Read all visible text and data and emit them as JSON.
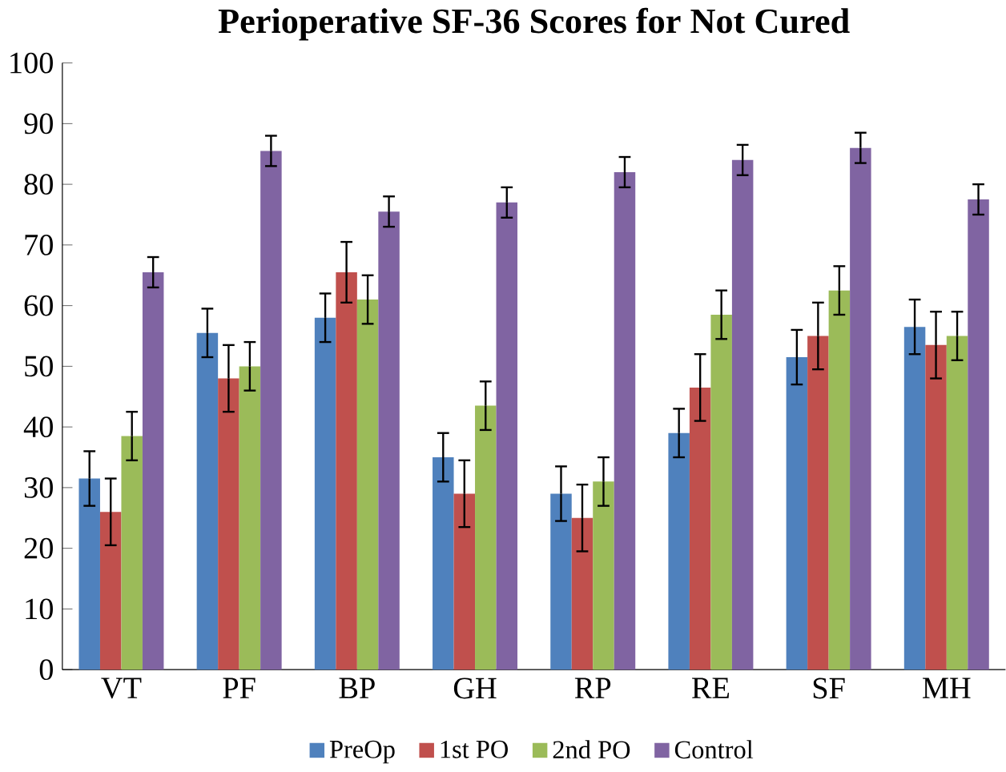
{
  "chart_data": {
    "type": "bar",
    "title": "Perioperative SF-36 Scores for Not Cured",
    "categories": [
      "VT",
      "PF",
      "BP",
      "GH",
      "RP",
      "RE",
      "SF",
      "MH"
    ],
    "series": [
      {
        "name": "PreOp",
        "color": "#4f81bd",
        "values": [
          31.5,
          55.5,
          58,
          35,
          29,
          39,
          51.5,
          56.5
        ],
        "errors": [
          4.5,
          4,
          4,
          4,
          4.5,
          4,
          4.5,
          4.5
        ]
      },
      {
        "name": "1st PO",
        "color": "#c0504d",
        "values": [
          26,
          48,
          65.5,
          29,
          25,
          46.5,
          55,
          53.5
        ],
        "errors": [
          5.5,
          5.5,
          5,
          5.5,
          5.5,
          5.5,
          5.5,
          5.5
        ]
      },
      {
        "name": "2nd PO",
        "color": "#9bbb59",
        "values": [
          38.5,
          50,
          61,
          43.5,
          31,
          58.5,
          62.5,
          55
        ],
        "errors": [
          4,
          4,
          4,
          4,
          4,
          4,
          4,
          4
        ]
      },
      {
        "name": "Control",
        "color": "#8064a2",
        "values": [
          65.5,
          85.5,
          75.5,
          77,
          82,
          84,
          86,
          77.5
        ],
        "errors": [
          2.5,
          2.5,
          2.5,
          2.5,
          2.5,
          2.5,
          2.5,
          2.5
        ]
      }
    ],
    "ylim": [
      0,
      100
    ],
    "yticks": [
      0,
      10,
      20,
      30,
      40,
      50,
      60,
      70,
      80,
      90,
      100
    ],
    "grid": false,
    "legend": "bottom"
  }
}
